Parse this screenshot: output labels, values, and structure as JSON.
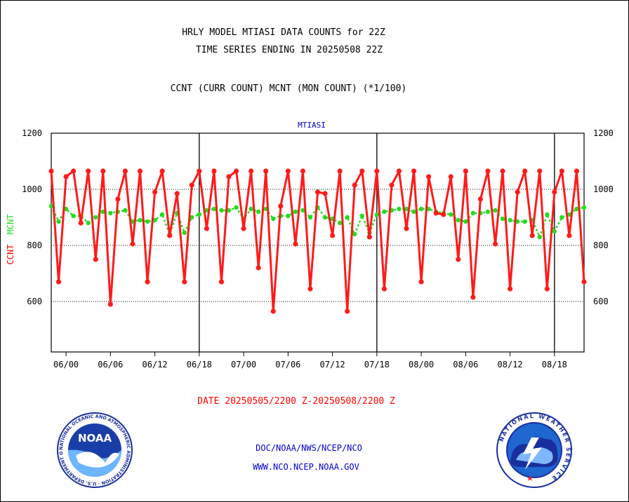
{
  "header": {
    "title_line1": "HRLY MODEL MTIASI DATA COUNTS for 22Z",
    "title_line2": "TIME SERIES ENDING IN 20250508 22Z",
    "subtitle": "CCNT (CURR COUNT) MCNT (MON COUNT) (*1/100)",
    "panel_label": "MTIASI"
  },
  "axis": {
    "ylabel_ccnt": "CCNT",
    "ylabel_mcnt": "MCNT",
    "xlabel": "DATE 20250505/2200 Z-20250508/2200 Z"
  },
  "footer": {
    "line1": "DOC/NOAA/NWS/NCEP/NCO",
    "line2": "WWW.NCO.NCEP.NOAA.GOV"
  },
  "logos": {
    "left": {
      "name": "noaa-logo",
      "text": "NOAA",
      "ring_text": "NATIONAL OCEANIC AND ATMOSPHERIC ADMINISTRATION · U.S. DEPARTMENT OF COMMERCE"
    },
    "right": {
      "name": "nws-logo",
      "ring_text": "NATIONAL WEATHER SERVICE"
    }
  },
  "colors": {
    "ccnt": "#ff1a1a",
    "mcnt": "#22dd22",
    "label_blue": "#0000cc",
    "date_red": "#ff0000"
  },
  "chart_data": {
    "type": "line",
    "title": "HRLY MODEL MTIASI DATA COUNTS for 22Z",
    "xlabel": "DATE 20250505/2200 Z-20250508/2200 Z",
    "ylabel": "CCNT MCNT",
    "ylim": [
      420,
      1200
    ],
    "yticks": [
      600,
      800,
      1000,
      1200
    ],
    "grid": true,
    "x_tick_labels": [
      "06/00",
      "06/06",
      "06/12",
      "06/18",
      "07/00",
      "07/06",
      "07/12",
      "07/18",
      "08/00",
      "08/06",
      "08/12",
      "08/18"
    ],
    "day_boundaries_hours": [
      20,
      44,
      68
    ],
    "x_range_hours": [
      0,
      72
    ],
    "series": [
      {
        "name": "CCNT",
        "color": "#ff1a1a",
        "x": [
          0,
          1,
          2,
          3,
          4,
          5,
          6,
          7,
          8,
          9,
          10,
          11,
          12,
          13,
          14,
          15,
          16,
          17,
          18,
          19,
          20,
          21,
          22,
          23,
          24,
          25,
          26,
          27,
          28,
          29,
          30,
          31,
          32,
          33,
          34,
          35,
          36,
          37,
          38,
          39,
          40,
          41,
          42,
          43,
          44,
          45,
          46,
          47,
          48,
          49,
          50,
          51,
          52,
          53,
          54,
          55,
          56,
          57,
          58,
          59,
          60,
          61,
          62,
          63,
          64,
          65,
          66,
          67,
          68,
          69,
          70,
          71,
          72
        ],
        "values": [
          1065,
          670,
          1045,
          1065,
          880,
          1065,
          750,
          1065,
          590,
          965,
          1065,
          805,
          1065,
          670,
          990,
          1065,
          835,
          985,
          670,
          1015,
          1065,
          860,
          1065,
          670,
          1045,
          1065,
          860,
          1065,
          720,
          1065,
          565,
          940,
          1065,
          805,
          1065,
          645,
          990,
          985,
          835,
          1065,
          565,
          1015,
          1065,
          830,
          1065,
          645,
          1015,
          1065,
          860,
          1065,
          670,
          1045,
          915,
          910,
          1045,
          750,
          1065,
          615,
          965,
          1065,
          805,
          1065,
          645,
          990,
          1065,
          835,
          1065,
          645,
          990,
          1065,
          835,
          1065,
          670
        ]
      },
      {
        "name": "MCNT",
        "color": "#22dd22",
        "x": [
          0,
          1,
          2,
          3,
          4,
          5,
          6,
          7,
          8,
          9,
          10,
          11,
          12,
          13,
          14,
          15,
          16,
          17,
          18,
          19,
          20,
          21,
          22,
          23,
          24,
          25,
          26,
          27,
          28,
          29,
          30,
          31,
          32,
          33,
          34,
          35,
          36,
          37,
          38,
          39,
          40,
          41,
          42,
          43,
          44,
          45,
          46,
          47,
          48,
          49,
          50,
          51,
          52,
          53,
          54,
          55,
          56,
          57,
          58,
          59,
          60,
          61,
          62,
          63,
          64,
          65,
          66,
          67,
          68,
          69,
          70,
          71,
          72
        ],
        "values": [
          940,
          885,
          930,
          905,
          905,
          880,
          900,
          920,
          915,
          920,
          925,
          885,
          890,
          885,
          890,
          910,
          840,
          915,
          845,
          900,
          910,
          925,
          930,
          925,
          925,
          935,
          895,
          930,
          920,
          930,
          895,
          905,
          905,
          920,
          925,
          900,
          935,
          900,
          895,
          880,
          900,
          840,
          905,
          845,
          910,
          920,
          925,
          930,
          930,
          920,
          930,
          930,
          920,
          915,
          910,
          890,
          885,
          915,
          915,
          920,
          925,
          895,
          890,
          885,
          885,
          890,
          830,
          910,
          850,
          900,
          910,
          930,
          935
        ]
      }
    ]
  }
}
